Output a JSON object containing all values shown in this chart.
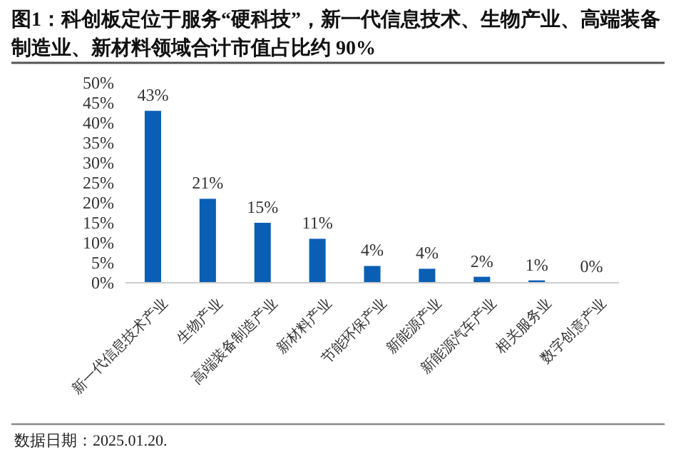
{
  "chart_data": {
    "type": "bar",
    "title": "图1：科创板定位于服务“硬科技”，新一代信息技术、生物产业、高端装备制造业、新材料领域合计市值占比约 90%",
    "categories": [
      "新一代信息技术产业",
      "生物产业",
      "高端装备制造产业",
      "新材料产业",
      "节能环保产业",
      "新能源产业",
      "新能源汽车产业",
      "相关服务业",
      "数字创意产业"
    ],
    "values": [
      43,
      21,
      15,
      11,
      4.2,
      3.5,
      1.5,
      0.6,
      0.1
    ],
    "value_labels": [
      "43%",
      "21%",
      "15%",
      "11%",
      "4%",
      "4%",
      "2%",
      "1%",
      "0%"
    ],
    "color": "#0a5fb4",
    "ylim": [
      0,
      50
    ],
    "yticks": [
      {
        "value": 0,
        "label": "0%"
      },
      {
        "value": 5,
        "label": "5%"
      },
      {
        "value": 10,
        "label": "10%"
      },
      {
        "value": 15,
        "label": "15%"
      },
      {
        "value": 20,
        "label": "20%"
      },
      {
        "value": 25,
        "label": "25%"
      },
      {
        "value": 30,
        "label": "30%"
      },
      {
        "value": 35,
        "label": "35%"
      },
      {
        "value": 40,
        "label": "40%"
      },
      {
        "value": 45,
        "label": "45%"
      },
      {
        "value": 50,
        "label": "50%"
      }
    ],
    "grid": false,
    "annotations": [
      "数据日期：2025.01.20."
    ]
  }
}
